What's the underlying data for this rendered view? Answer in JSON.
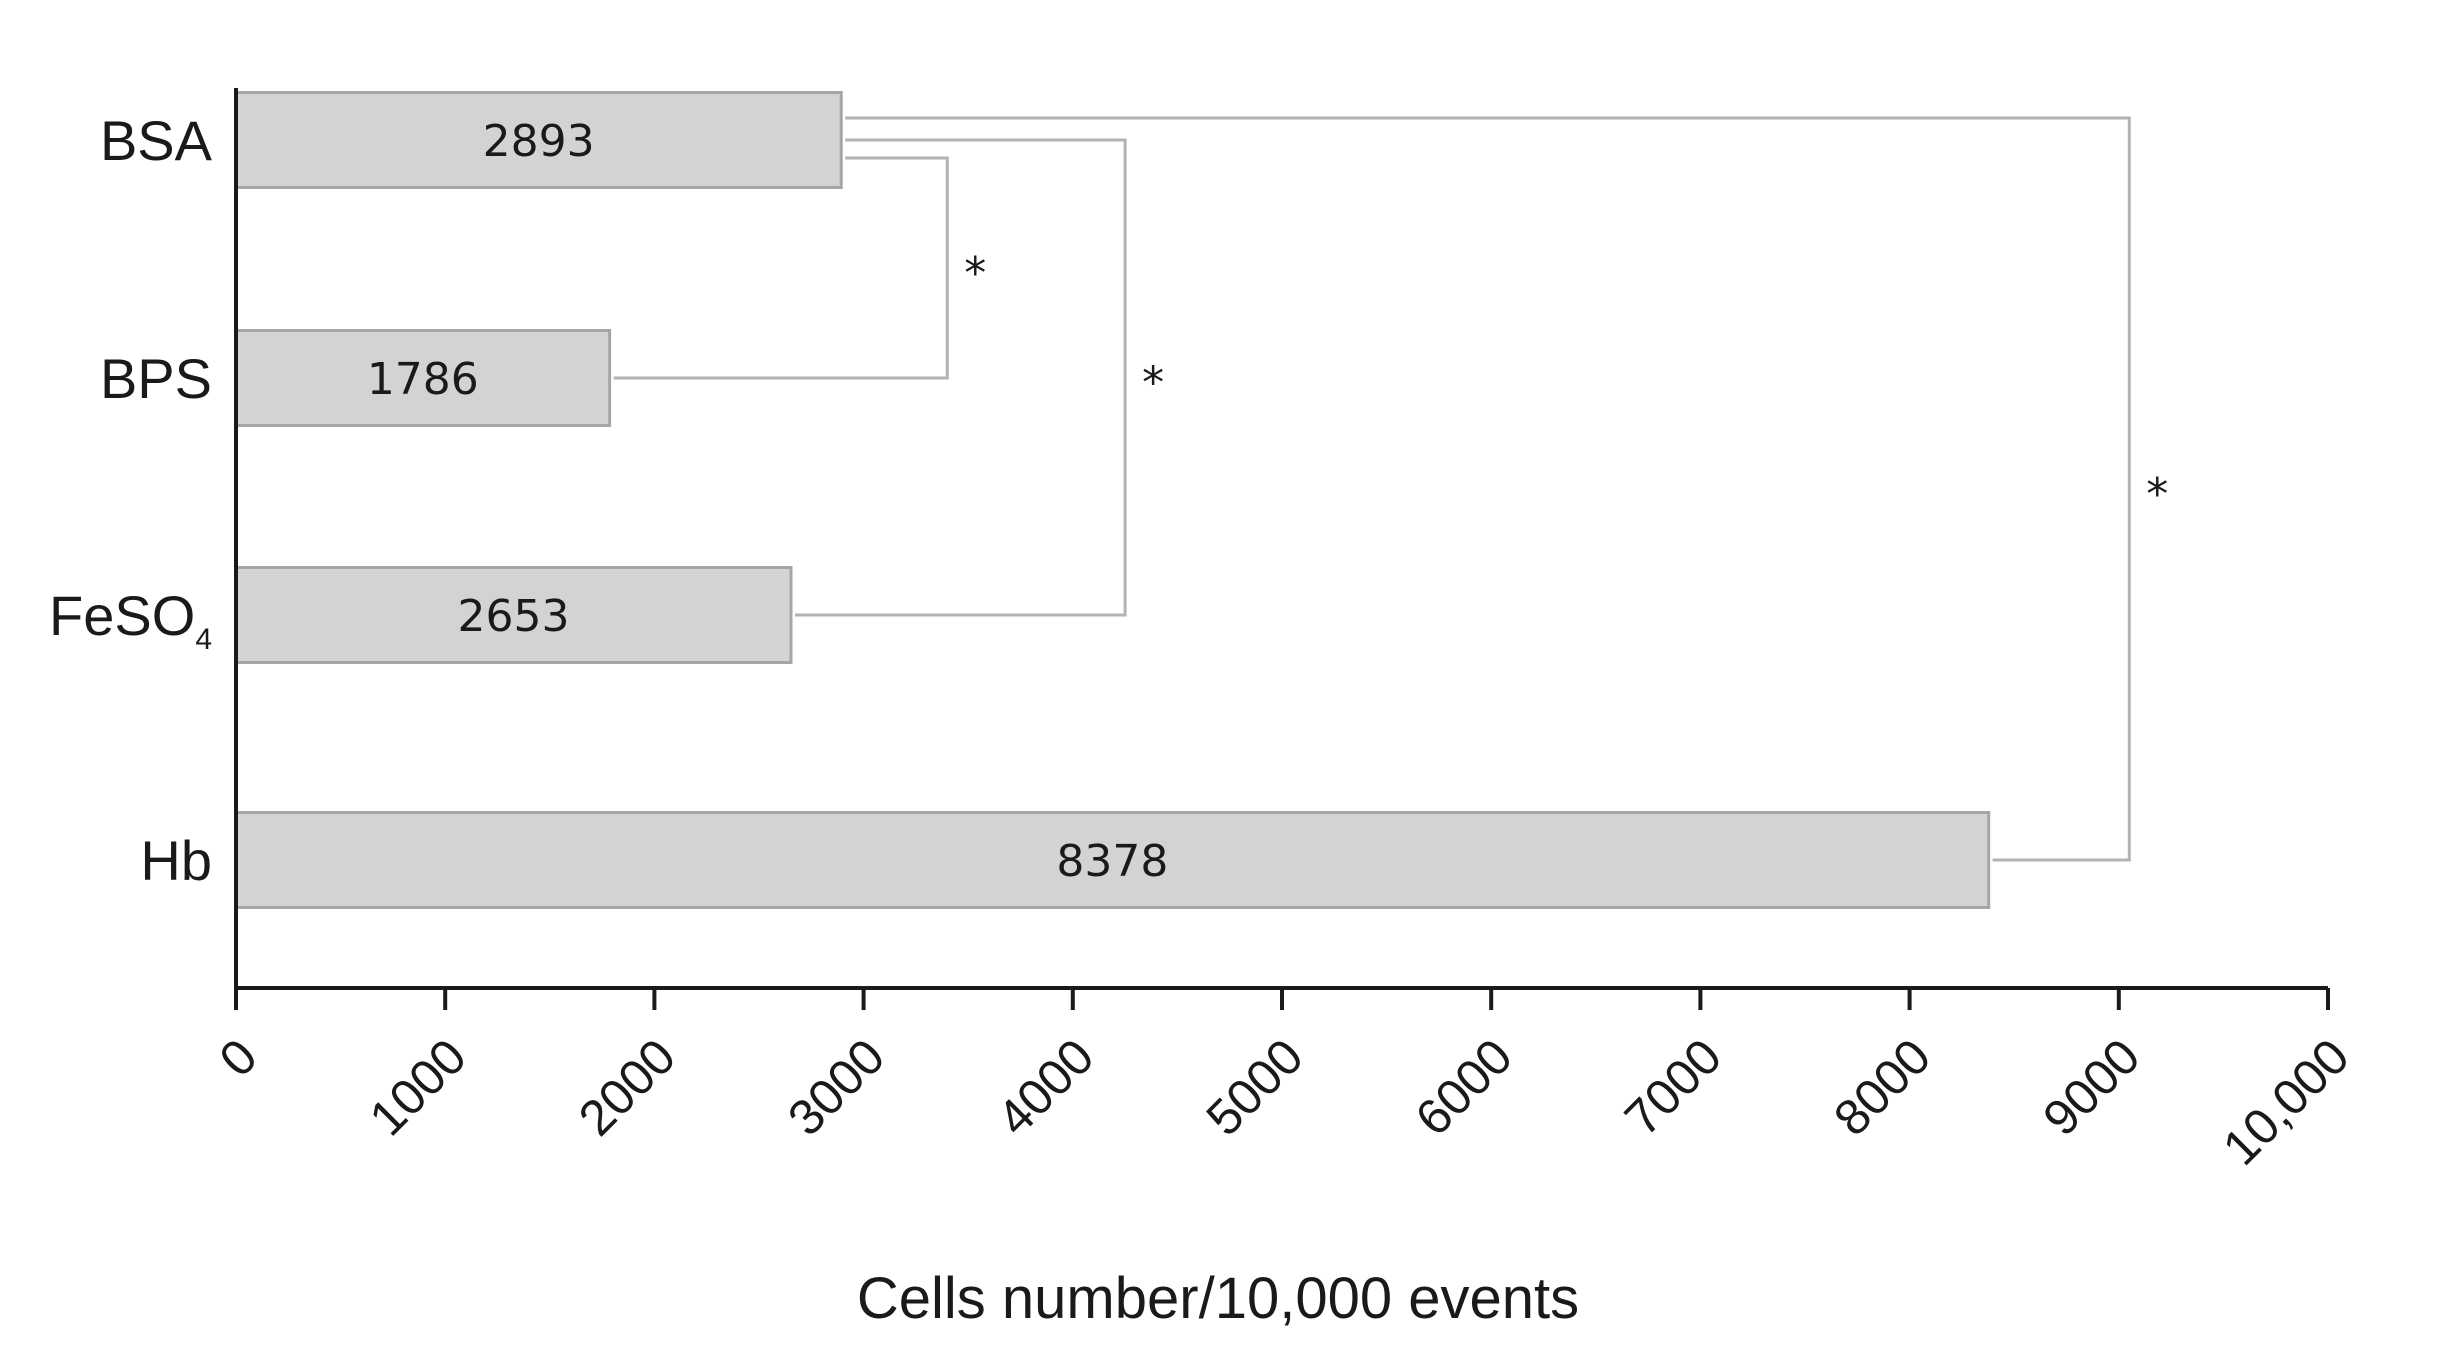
{
  "chart_data": {
    "type": "bar",
    "orientation": "horizontal",
    "categories": [
      {
        "name": "BSA"
      },
      {
        "name": "BPS"
      },
      {
        "name": "FeSO",
        "subscript": "4"
      },
      {
        "name": "Hb"
      }
    ],
    "values": [
      2893,
      1786,
      2653,
      8378
    ],
    "data_labels": [
      "2893",
      "1786",
      "2653",
      "8378"
    ],
    "xlabel": "Cells number/10,000 events",
    "xlim": [
      0,
      10000
    ],
    "xticks": [
      0,
      1000,
      2000,
      3000,
      4000,
      5000,
      6000,
      7000,
      8000,
      9000,
      10000
    ],
    "xtick_labels": [
      "0",
      "1000",
      "2000",
      "3000",
      "4000",
      "5000",
      "6000",
      "7000",
      "8000",
      "9000",
      "10,000"
    ],
    "grid": false,
    "legend": "none",
    "bar_color": "#d3d3d3",
    "bar_edge_color": "#a6a6a6",
    "bracket_color": "#b3b3b3",
    "significance_brackets": [
      {
        "from": "BSA",
        "to": "BPS",
        "label": "*",
        "x": 3400
      },
      {
        "from": "BSA",
        "to": "FeSO4",
        "label": "*",
        "x": 4250
      },
      {
        "from": "BSA",
        "to": "Hb",
        "label": "*",
        "x": 9050
      }
    ]
  }
}
